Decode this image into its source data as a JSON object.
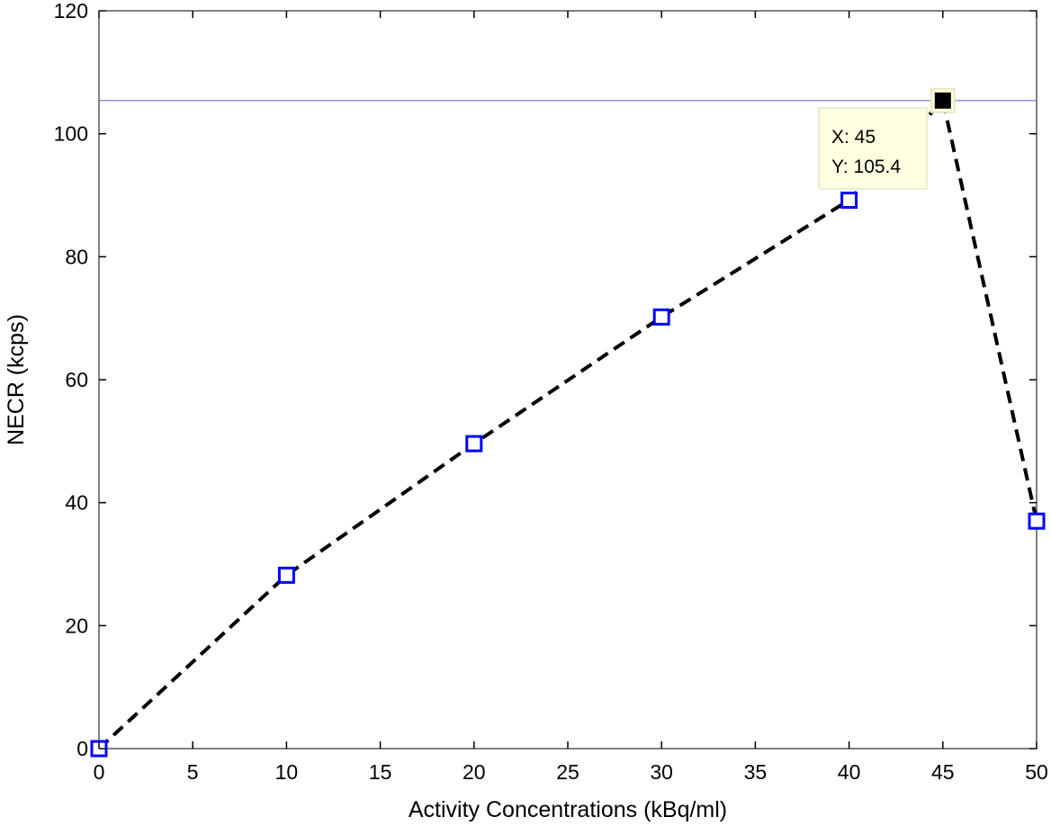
{
  "chart_data": {
    "type": "line",
    "xlabel": "Activity Concentrations (kBq/ml)",
    "ylabel": "NECR (kcps)",
    "xlim": [
      0,
      50
    ],
    "ylim": [
      0,
      120
    ],
    "x_ticks": [
      0,
      5,
      10,
      15,
      20,
      25,
      30,
      35,
      40,
      45,
      50
    ],
    "y_ticks": [
      0,
      20,
      40,
      60,
      80,
      100,
      120
    ],
    "grid": false,
    "series": [
      {
        "x": [
          0,
          10,
          20,
          30,
          40,
          45,
          50
        ],
        "y": [
          0,
          28.2,
          49.6,
          70.2,
          89.2,
          105.4,
          37.0
        ],
        "line_style": "dashed",
        "line_color": "#000000",
        "marker": "square",
        "marker_color": "#0000ff"
      }
    ],
    "reference_line": {
      "y": 105.4,
      "color": "#5a63c8"
    },
    "data_tip": {
      "x": 45,
      "y": 105.4,
      "line1": "X: 45",
      "line2": "Y: 105.4",
      "marker_fill": "#000000",
      "box_color": "#ffffe1"
    }
  }
}
